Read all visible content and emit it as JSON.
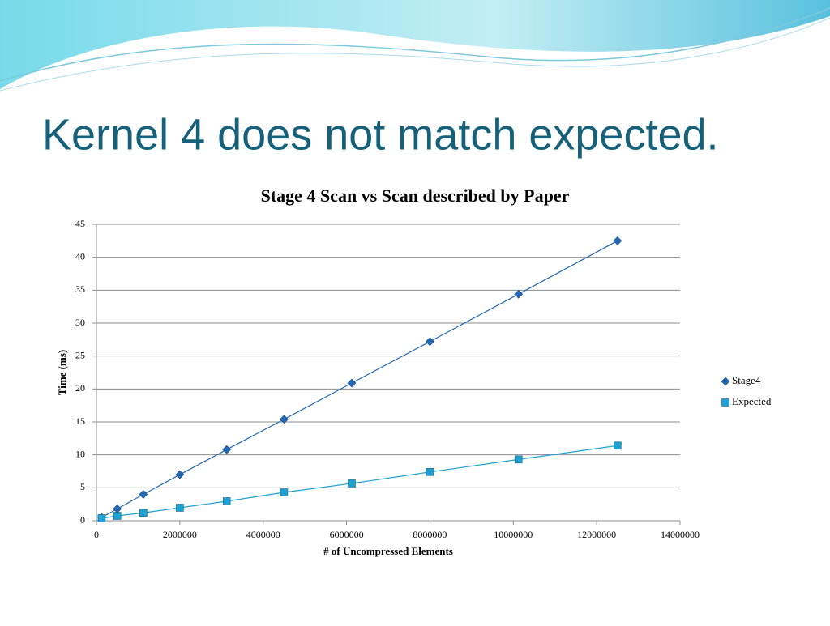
{
  "slide_title": "Kernel 4 does not match expected.",
  "chart_data": {
    "type": "line",
    "title": "Stage 4 Scan vs Scan described by Paper",
    "x_label": "# of Uncompressed Elements",
    "y_label": "Time (ms)",
    "x": [
      125000,
      500000,
      1125000,
      2000000,
      3125000,
      4500000,
      6125000,
      8000000,
      10125000,
      12500000
    ],
    "series": [
      {
        "name": "Stage4",
        "color": "#2468b4",
        "marker": "diamond",
        "values": [
          0.5,
          1.8,
          4.0,
          7.0,
          10.8,
          15.4,
          20.9,
          27.2,
          34.4,
          42.5
        ]
      },
      {
        "name": "Expected",
        "color": "#1ea0d2",
        "marker": "square",
        "values": [
          0.37,
          0.74,
          1.2,
          1.97,
          2.95,
          4.3,
          5.66,
          7.4,
          9.3,
          11.4
        ]
      }
    ],
    "xlim": [
      0,
      14000000
    ],
    "xticks": [
      0,
      2000000,
      4000000,
      6000000,
      8000000,
      10000000,
      12000000,
      14000000
    ],
    "ylim": [
      0,
      45
    ],
    "yticks": [
      0,
      5,
      10,
      15,
      20,
      25,
      30,
      35,
      40,
      45
    ],
    "grid": true,
    "legend": "right"
  }
}
